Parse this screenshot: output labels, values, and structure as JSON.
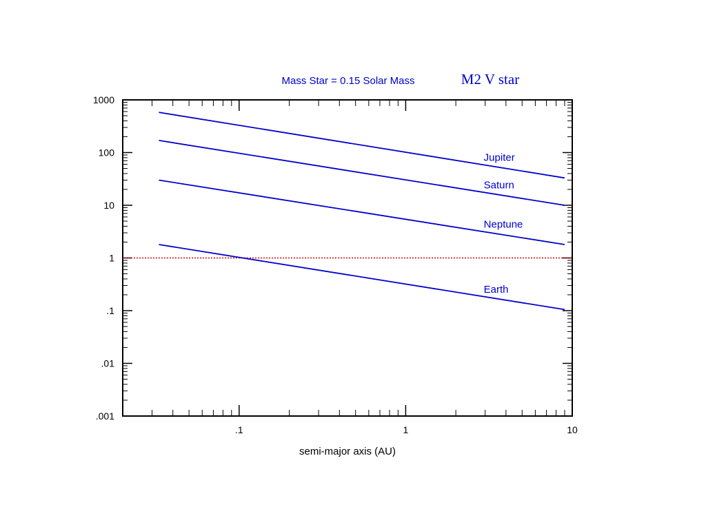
{
  "chart_data": {
    "type": "line",
    "title": "Mass Star = 0.15 Solar Mass",
    "subtitle": "M2 V star",
    "xlabel": "semi-major axis (AU)",
    "ylabel": "",
    "x_scale": "log",
    "y_scale": "log",
    "xlim": [
      0.02,
      10
    ],
    "ylim": [
      0.001,
      1000
    ],
    "x_tick_labels": [
      {
        "value": 0.1,
        "label": ".1"
      },
      {
        "value": 1,
        "label": "1"
      },
      {
        "value": 10,
        "label": "10"
      }
    ],
    "y_tick_labels": [
      {
        "value": 0.001,
        "label": ".001"
      },
      {
        "value": 0.01,
        "label": ".01"
      },
      {
        "value": 0.1,
        "label": ".1"
      },
      {
        "value": 1,
        "label": "1"
      },
      {
        "value": 10,
        "label": "10"
      },
      {
        "value": 100,
        "label": "100"
      },
      {
        "value": 1000,
        "label": "1000"
      }
    ],
    "grid": false,
    "series": [
      {
        "name": "Jupiter",
        "x": [
          0.033,
          9
        ],
        "y": [
          580,
          33
        ],
        "color": "#0000cc"
      },
      {
        "name": "Saturn",
        "x": [
          0.033,
          9
        ],
        "y": [
          170,
          10
        ],
        "color": "#0000cc"
      },
      {
        "name": "Neptune",
        "x": [
          0.033,
          9
        ],
        "y": [
          30,
          1.8
        ],
        "color": "#0000cc"
      },
      {
        "name": "Earth",
        "x": [
          0.033,
          9
        ],
        "y": [
          1.8,
          0.105
        ],
        "color": "#0000cc"
      }
    ],
    "reference_line": {
      "y": 1,
      "color": "#dd0000",
      "style": "dotted"
    },
    "title_color": "#0000cc"
  }
}
